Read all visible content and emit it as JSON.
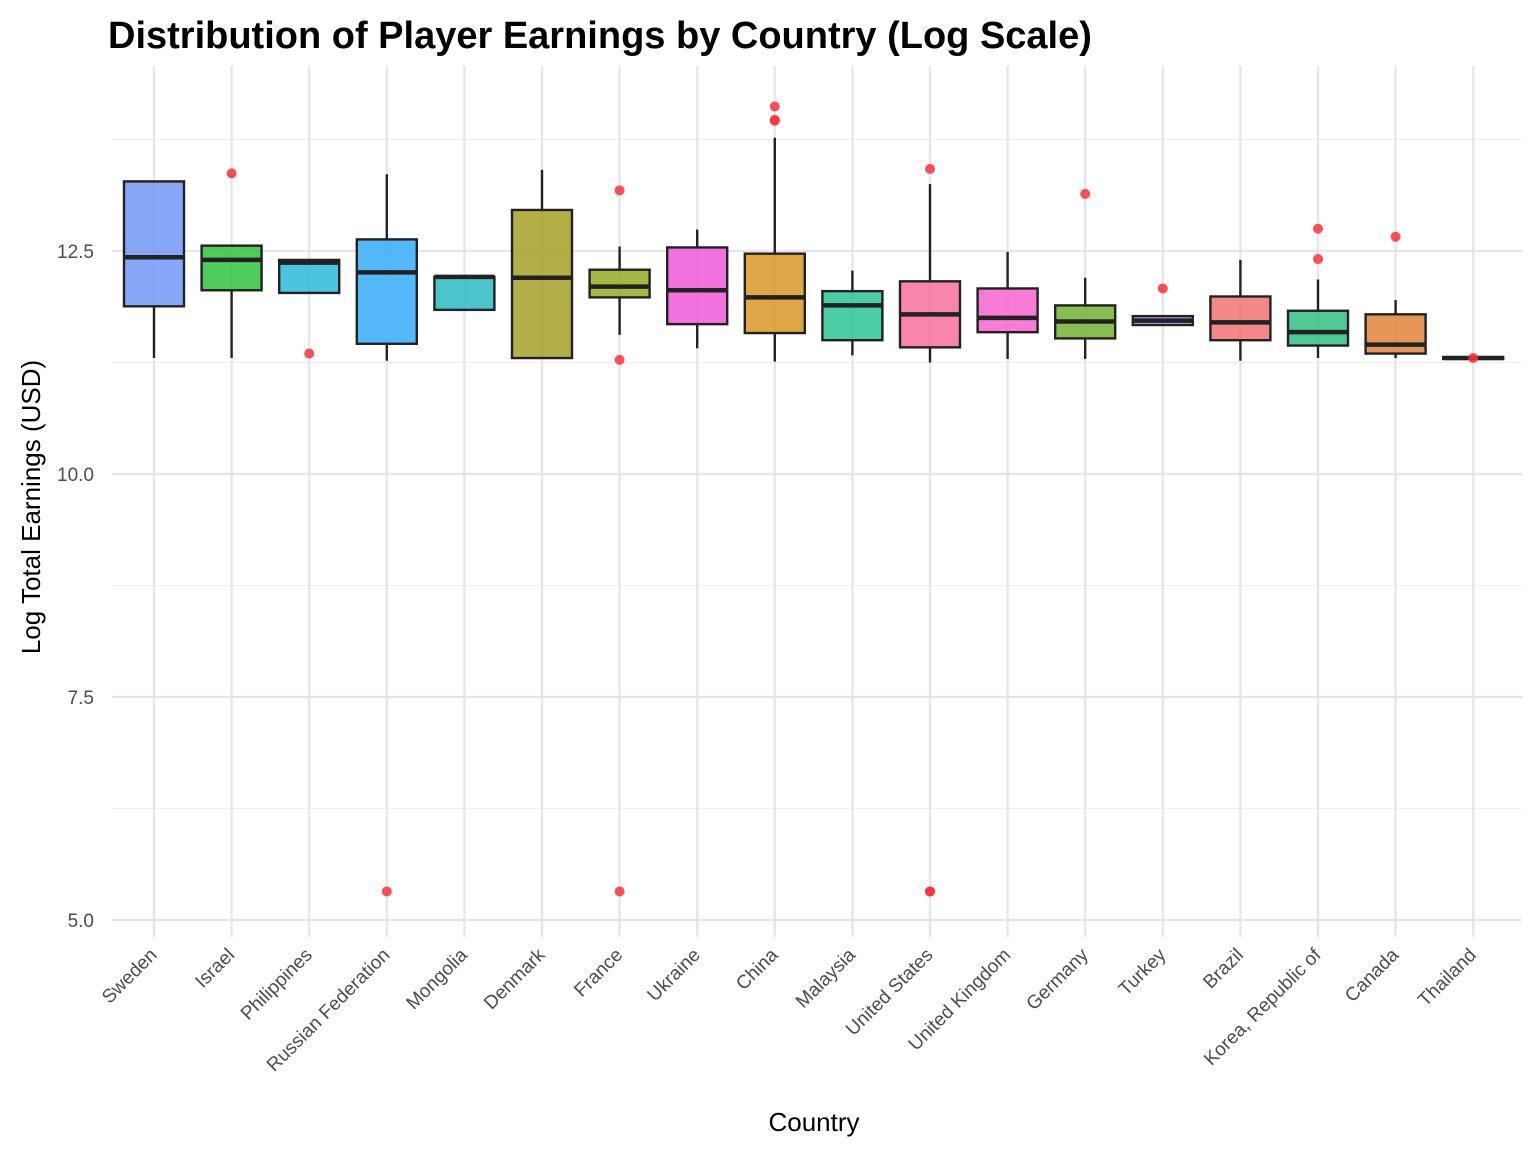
{
  "chart_data": {
    "type": "boxplot",
    "title": "Distribution of Player Earnings by Country (Log Scale)",
    "xlabel": "Country",
    "ylabel": "Log Total Earnings (USD)",
    "ylim": [
      4.85,
      14.2
    ],
    "yticks": [
      5.0,
      7.5,
      10.0,
      12.5
    ],
    "ytick_labels": [
      "5.0",
      "7.5",
      "10.0",
      "12.5"
    ],
    "y_minor_ticks": [
      6.25,
      8.75,
      11.25,
      13.75
    ],
    "grid": true,
    "legend": "none",
    "outlier_color": "#f8333c",
    "series": [
      {
        "name": "Sweden",
        "color": "#6f94f7",
        "whisker_low": 11.3,
        "q1": 11.88,
        "median": 12.43,
        "q3": 13.28,
        "whisker_high": 13.28,
        "outliers": []
      },
      {
        "name": "Israel",
        "color": "#2bbf3a",
        "whisker_low": 11.3,
        "q1": 12.06,
        "median": 12.4,
        "q3": 12.56,
        "whisker_high": 12.56,
        "outliers": [
          13.37
        ]
      },
      {
        "name": "Philippines",
        "color": "#23b8d8",
        "whisker_low": 12.03,
        "q1": 12.03,
        "median": 12.37,
        "q3": 12.4,
        "whisker_high": 12.4,
        "outliers": [
          11.35
        ]
      },
      {
        "name": "Russian Federation",
        "color": "#2fa8f7",
        "whisker_low": 11.27,
        "q1": 11.46,
        "median": 12.26,
        "q3": 12.63,
        "whisker_high": 13.36,
        "outliers": [
          5.32
        ]
      },
      {
        "name": "Mongolia",
        "color": "#23b7c0",
        "whisker_low": 11.84,
        "q1": 11.84,
        "median": 12.21,
        "q3": 12.21,
        "whisker_high": 12.21,
        "outliers": []
      },
      {
        "name": "Denmark",
        "color": "#a49c1f",
        "whisker_low": 11.3,
        "q1": 11.3,
        "median": 12.2,
        "q3": 12.96,
        "whisker_high": 13.41,
        "outliers": []
      },
      {
        "name": "France",
        "color": "#8ea91c",
        "whisker_low": 11.56,
        "q1": 11.98,
        "median": 12.1,
        "q3": 12.29,
        "whisker_high": 12.55,
        "outliers": [
          13.18,
          11.28,
          5.32
        ]
      },
      {
        "name": "Ukraine",
        "color": "#ef53d8",
        "whisker_low": 11.41,
        "q1": 11.68,
        "median": 12.06,
        "q3": 12.54,
        "whisker_high": 12.74,
        "outliers": []
      },
      {
        "name": "China",
        "color": "#d89320",
        "whisker_low": 11.26,
        "q1": 11.58,
        "median": 11.98,
        "q3": 12.47,
        "whisker_high": 13.77,
        "outliers": [
          14.12,
          13.97,
          13.96
        ]
      },
      {
        "name": "Malaysia",
        "color": "#23c092",
        "whisker_low": 11.33,
        "q1": 11.5,
        "median": 11.89,
        "q3": 12.05,
        "whisker_high": 12.28,
        "outliers": []
      },
      {
        "name": "United States",
        "color": "#f8699b",
        "whisker_low": 11.25,
        "q1": 11.42,
        "median": 11.79,
        "q3": 12.16,
        "whisker_high": 13.25,
        "outliers": [
          13.42,
          5.32,
          5.32
        ]
      },
      {
        "name": "United Kingdom",
        "color": "#f65ed0",
        "whisker_low": 11.29,
        "q1": 11.59,
        "median": 11.75,
        "q3": 12.08,
        "whisker_high": 12.49,
        "outliers": []
      },
      {
        "name": "Germany",
        "color": "#6cb02e",
        "whisker_low": 11.29,
        "q1": 11.52,
        "median": 11.71,
        "q3": 11.89,
        "whisker_high": 12.2,
        "outliers": [
          13.14
        ]
      },
      {
        "name": "Turkey",
        "color": "#a98bf0",
        "whisker_low": 11.67,
        "q1": 11.67,
        "median": 11.72,
        "q3": 11.77,
        "whisker_high": 11.77,
        "outliers": [
          12.08
        ]
      },
      {
        "name": "Brazil",
        "color": "#f26c6c",
        "whisker_low": 11.27,
        "q1": 11.5,
        "median": 11.7,
        "q3": 11.99,
        "whisker_high": 12.4,
        "outliers": []
      },
      {
        "name": "Korea, Republic of",
        "color": "#2bbd7e",
        "whisker_low": 11.3,
        "q1": 11.44,
        "median": 11.59,
        "q3": 11.83,
        "whisker_high": 12.18,
        "outliers": [
          12.75,
          12.41
        ]
      },
      {
        "name": "Canada",
        "color": "#e07f33",
        "whisker_low": 11.3,
        "q1": 11.35,
        "median": 11.45,
        "q3": 11.79,
        "whisker_high": 11.95,
        "outliers": [
          12.66
        ]
      },
      {
        "name": "Thailand",
        "color": "#8a6ad8",
        "whisker_low": 11.29,
        "q1": 11.29,
        "median": 11.3,
        "q3": 11.31,
        "whisker_high": 11.31,
        "outliers": [
          11.3
        ]
      }
    ]
  }
}
